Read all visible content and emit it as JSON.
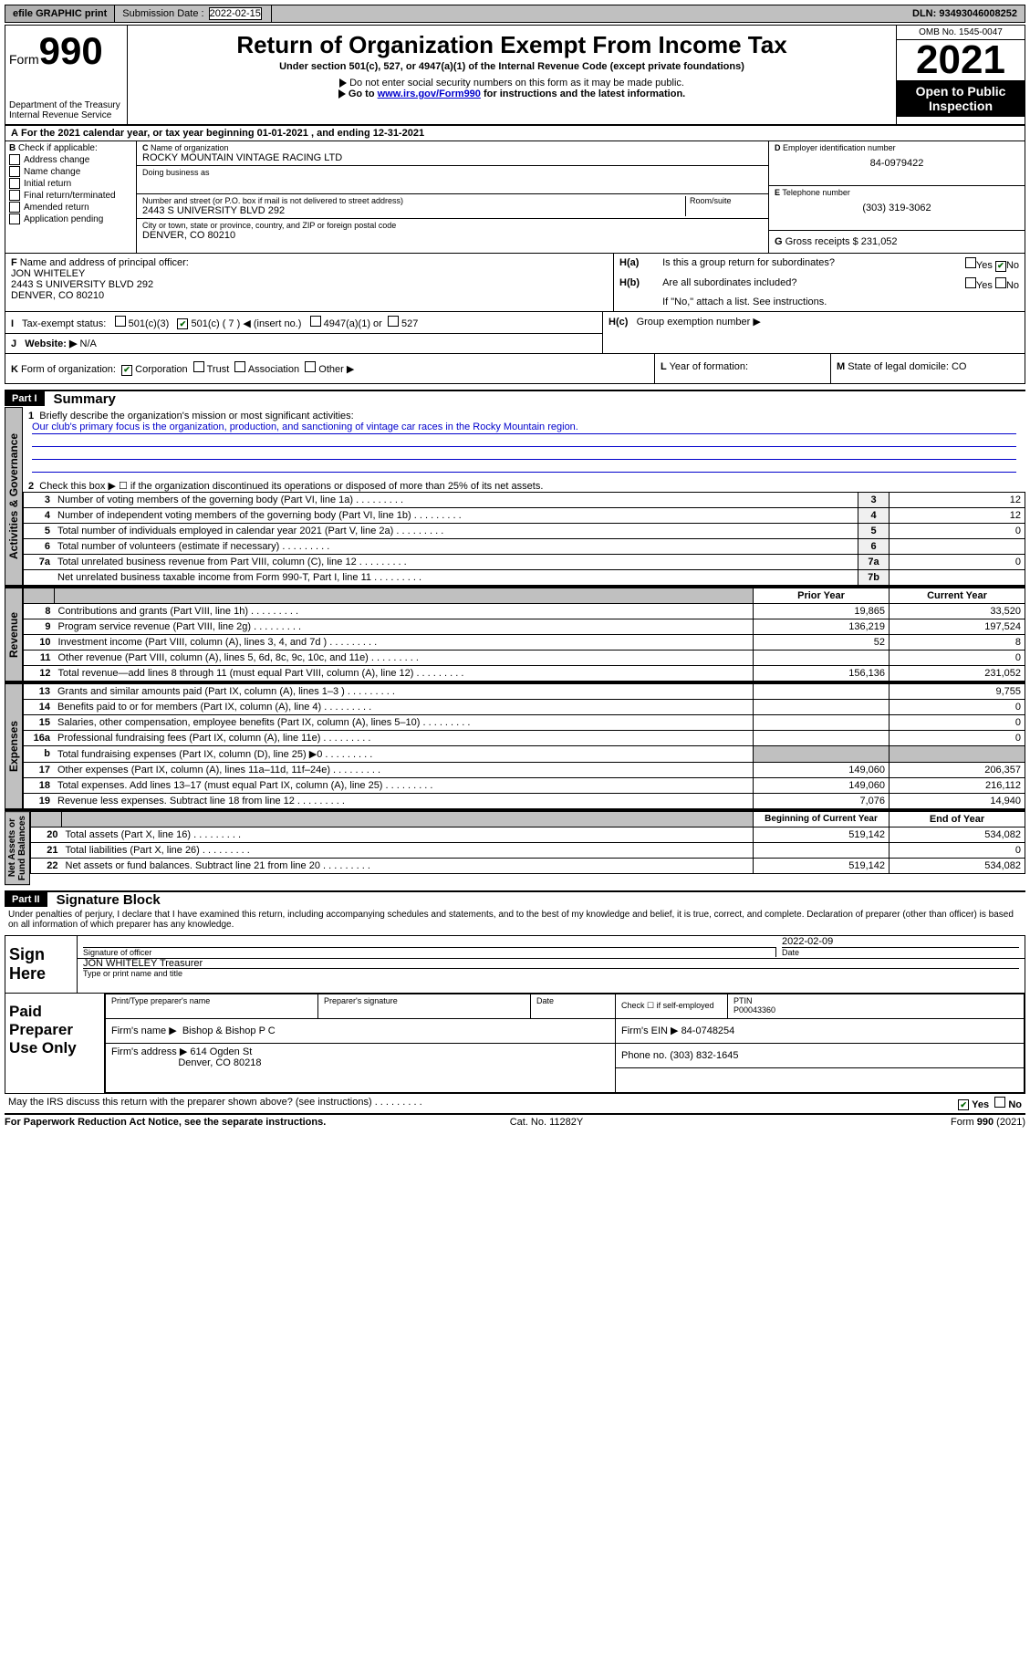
{
  "topbar": {
    "efile": "efile GRAPHIC print",
    "submission_label": "Submission Date :",
    "submission_date": "2022-02-15",
    "dln_label": "DLN:",
    "dln": "93493046008252"
  },
  "header": {
    "form_word": "Form",
    "form_number": "990",
    "dept": "Department of the Treasury",
    "irs": "Internal Revenue Service",
    "title": "Return of Organization Exempt From Income Tax",
    "subtitle": "Under section 501(c), 527, or 4947(a)(1) of the Internal Revenue Code (except private foundations)",
    "note1": "Do not enter social security numbers on this form as it may be made public.",
    "note2_pre": "Go to ",
    "note2_link": "www.irs.gov/Form990",
    "note2_post": " for instructions and the latest information.",
    "omb": "OMB No. 1545-0047",
    "year": "2021",
    "open": "Open to Public Inspection"
  },
  "period": {
    "text_a": "For the 2021 calendar year, or tax year beginning ",
    "begin": "01-01-2021",
    "text_b": " , and ending ",
    "end": "12-31-2021"
  },
  "B": {
    "title": "Check if applicable:",
    "opts": [
      "Address change",
      "Name change",
      "Initial return",
      "Final return/terminated",
      "Amended return",
      "Application pending"
    ]
  },
  "C": {
    "name_label": "Name of organization",
    "name": "ROCKY MOUNTAIN VINTAGE RACING LTD",
    "dba_label": "Doing business as",
    "street_label": "Number and street (or P.O. box if mail is not delivered to street address)",
    "room_label": "Room/suite",
    "street": "2443 S UNIVERSITY BLVD 292",
    "city_label": "City or town, state or province, country, and ZIP or foreign postal code",
    "city": "DENVER, CO  80210"
  },
  "D": {
    "label": "Employer identification number",
    "val": "84-0979422"
  },
  "E": {
    "label": "Telephone number",
    "val": "(303) 319-3062"
  },
  "G": {
    "label": "Gross receipts $",
    "val": "231,052"
  },
  "F": {
    "label": "Name and address of principal officer:",
    "name": "JON WHITELEY",
    "addr1": "2443 S UNIVERSITY BLVD 292",
    "addr2": "DENVER, CO  80210"
  },
  "H": {
    "a": "Is this a group return for subordinates?",
    "b": "Are all subordinates included?",
    "b_note": "If \"No,\" attach a list. See instructions.",
    "c": "Group exemption number ▶",
    "yes": "Yes",
    "no": "No"
  },
  "I": {
    "label": "Tax-exempt status:",
    "o1": "501(c)(3)",
    "o2": "501(c) ( 7 ) ◀ (insert no.)",
    "o3": "4947(a)(1) or",
    "o4": "527"
  },
  "J": {
    "label": "Website: ▶",
    "val": "N/A"
  },
  "K": {
    "label": "Form of organization:",
    "o1": "Corporation",
    "o2": "Trust",
    "o3": "Association",
    "o4": "Other ▶"
  },
  "L": {
    "label": "Year of formation:",
    "val": ""
  },
  "M": {
    "label": "State of legal domicile:",
    "val": "CO"
  },
  "part1": {
    "label": "Part I",
    "title": "Summary",
    "l1_label": "Briefly describe the organization's mission or most significant activities:",
    "l1_text": "Our club's primary focus is the organization, production, and sanctioning of vintage car races in the Rocky Mountain region.",
    "l2": "Check this box ▶ ☐  if the organization discontinued its operations or disposed of more than 25% of its net assets.",
    "lines_gov": [
      {
        "n": "3",
        "d": "Number of voting members of the governing body (Part VI, line 1a)",
        "b": "3",
        "v": "12"
      },
      {
        "n": "4",
        "d": "Number of independent voting members of the governing body (Part VI, line 1b)",
        "b": "4",
        "v": "12"
      },
      {
        "n": "5",
        "d": "Total number of individuals employed in calendar year 2021 (Part V, line 2a)",
        "b": "5",
        "v": "0"
      },
      {
        "n": "6",
        "d": "Total number of volunteers (estimate if necessary)",
        "b": "6",
        "v": ""
      },
      {
        "n": "7a",
        "d": "Total unrelated business revenue from Part VIII, column (C), line 12",
        "b": "7a",
        "v": "0"
      },
      {
        "n": "",
        "d": "Net unrelated business taxable income from Form 990-T, Part I, line 11",
        "b": "7b",
        "v": ""
      }
    ],
    "col_prior": "Prior Year",
    "col_current": "Current Year",
    "lines_rev": [
      {
        "n": "8",
        "d": "Contributions and grants (Part VIII, line 1h)",
        "p": "19,865",
        "c": "33,520"
      },
      {
        "n": "9",
        "d": "Program service revenue (Part VIII, line 2g)",
        "p": "136,219",
        "c": "197,524"
      },
      {
        "n": "10",
        "d": "Investment income (Part VIII, column (A), lines 3, 4, and 7d )",
        "p": "52",
        "c": "8"
      },
      {
        "n": "11",
        "d": "Other revenue (Part VIII, column (A), lines 5, 6d, 8c, 9c, 10c, and 11e)",
        "p": "",
        "c": "0"
      },
      {
        "n": "12",
        "d": "Total revenue—add lines 8 through 11 (must equal Part VIII, column (A), line 12)",
        "p": "156,136",
        "c": "231,052"
      }
    ],
    "lines_exp": [
      {
        "n": "13",
        "d": "Grants and similar amounts paid (Part IX, column (A), lines 1–3 )",
        "p": "",
        "c": "9,755"
      },
      {
        "n": "14",
        "d": "Benefits paid to or for members (Part IX, column (A), line 4)",
        "p": "",
        "c": "0"
      },
      {
        "n": "15",
        "d": "Salaries, other compensation, employee benefits (Part IX, column (A), lines 5–10)",
        "p": "",
        "c": "0"
      },
      {
        "n": "16a",
        "d": "Professional fundraising fees (Part IX, column (A), line 11e)",
        "p": "",
        "c": "0"
      },
      {
        "n": "b",
        "d": "Total fundraising expenses (Part IX, column (D), line 25) ▶0",
        "p": "shade",
        "c": "shade"
      },
      {
        "n": "17",
        "d": "Other expenses (Part IX, column (A), lines 11a–11d, 11f–24e)",
        "p": "149,060",
        "c": "206,357"
      },
      {
        "n": "18",
        "d": "Total expenses. Add lines 13–17 (must equal Part IX, column (A), line 25)",
        "p": "149,060",
        "c": "216,112"
      },
      {
        "n": "19",
        "d": "Revenue less expenses. Subtract line 18 from line 12",
        "p": "7,076",
        "c": "14,940"
      }
    ],
    "col_begin": "Beginning of Current Year",
    "col_end": "End of Year",
    "lines_net": [
      {
        "n": "20",
        "d": "Total assets (Part X, line 16)",
        "p": "519,142",
        "c": "534,082"
      },
      {
        "n": "21",
        "d": "Total liabilities (Part X, line 26)",
        "p": "",
        "c": "0"
      },
      {
        "n": "22",
        "d": "Net assets or fund balances. Subtract line 21 from line 20",
        "p": "519,142",
        "c": "534,082"
      }
    ]
  },
  "part2": {
    "label": "Part II",
    "title": "Signature Block",
    "decl": "Under penalties of perjury, I declare that I have examined this return, including accompanying schedules and statements, and to the best of my knowledge and belief, it is true, correct, and complete. Declaration of preparer (other than officer) is based on all information of which preparer has any knowledge."
  },
  "sign": {
    "here": "Sign Here",
    "sig_label": "Signature of officer",
    "date_label": "Date",
    "date": "2022-02-09",
    "name": "JON WHITELEY Treasurer",
    "name_label": "Type or print name and title"
  },
  "paid": {
    "title": "Paid Preparer Use Only",
    "h1": "Print/Type preparer's name",
    "h2": "Preparer's signature",
    "h3": "Date",
    "h4_check": "Check ☐ if self-employed",
    "h5": "PTIN",
    "ptin": "P00043360",
    "firm_name_label": "Firm's name    ▶",
    "firm_name": "Bishop & Bishop P C",
    "firm_ein_label": "Firm's EIN ▶",
    "firm_ein": "84-0748254",
    "firm_addr_label": "Firm's address ▶",
    "firm_addr1": "614 Ogden St",
    "firm_addr2": "Denver, CO  80218",
    "phone_label": "Phone no.",
    "phone": "(303) 832-1645"
  },
  "discuss": {
    "q": "May the IRS discuss this return with the preparer shown above? (see instructions)",
    "yes": "Yes",
    "no": "No"
  },
  "footer": {
    "l": "For Paperwork Reduction Act Notice, see the separate instructions.",
    "m": "Cat. No. 11282Y",
    "r": "Form 990 (2021)"
  }
}
